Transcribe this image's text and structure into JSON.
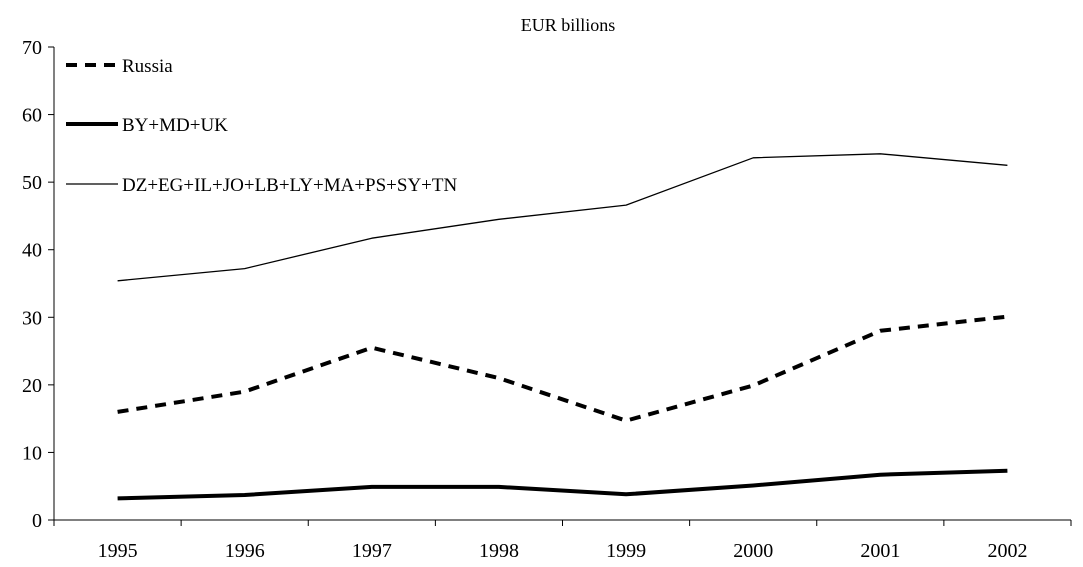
{
  "chart_data": {
    "type": "line",
    "title": "EUR billions",
    "xlabel": "",
    "ylabel": "",
    "categories": [
      "1995",
      "1996",
      "1997",
      "1998",
      "1999",
      "2000",
      "2001",
      "2002"
    ],
    "ylim": [
      0,
      70
    ],
    "yticks": [
      "0",
      "10",
      "20",
      "30",
      "40",
      "50",
      "60",
      "70"
    ],
    "grid": false,
    "legend_position": "top-left",
    "series": [
      {
        "name": "Russia",
        "style": "dashed-thick",
        "color": "#000000",
        "values": [
          16.0,
          19.0,
          25.5,
          21.0,
          14.7,
          19.9,
          28.0,
          30.1
        ]
      },
      {
        "name": "BY+MD+UK",
        "style": "solid-thick",
        "color": "#000000",
        "values": [
          3.2,
          3.7,
          4.9,
          4.9,
          3.8,
          5.1,
          6.7,
          7.3
        ]
      },
      {
        "name": "DZ+EG+IL+JO+LB+LY+MA+PS+SY+TN",
        "style": "solid-thin",
        "color": "#000000",
        "values": [
          35.4,
          37.2,
          41.7,
          44.5,
          46.6,
          53.6,
          54.2,
          52.5
        ]
      }
    ]
  }
}
